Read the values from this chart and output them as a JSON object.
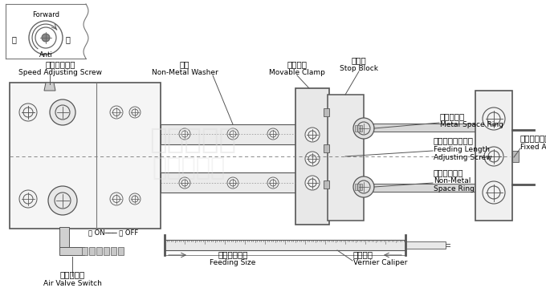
{
  "bg_color": "#ffffff",
  "dark_line": "#555555",
  "mid_line": "#777777",
  "text_color": "#000000",
  "fill_light": "#f2f2f2",
  "fill_mid": "#e0e0e0",
  "fill_dark": "#c8c8c8",
  "labels": {
    "forward": "Forward",
    "anti": "Anti",
    "speed_screw_cn": "速度調整螺絲",
    "speed_screw_en": "Speed Adjusting Screw",
    "washer_cn": "墊圈",
    "washer_en": "Non-Metal Washer",
    "clamp_cn": "移動夾板",
    "clamp_en": "Movable Clamp",
    "stop_cn": "擋止塊",
    "stop_en": "Stop Block",
    "metal_ring_cn": "金屬間隔環",
    "metal_ring_en": "Metal Space Ring",
    "feeding_screw_cn": "送料長度微調螺絲",
    "feeding_screw_en1": "Feeding Length",
    "feeding_screw_en2": "Adjusting Screw",
    "nonmetal_ring_cn": "非金屬間隔環",
    "nonmetal_ring_en1": "Non-Metal",
    "nonmetal_ring_en2": "Space Ring",
    "fixed_screw_cn": "固定微調螺絲",
    "fixed_screw_en": "Fixed Adjusting Screw",
    "on_off": "開 ON─── 關 OFF",
    "feeding_size_cn": "送料所需尺寸",
    "feeding_size_en": "Feeding Size",
    "vernier_cn": "游標卡尺",
    "vernier_en": "Vernier Caliper",
    "air_valve_cn": "空氣閥開關",
    "air_valve_en": "Air Valve Switch",
    "watermark1": "亞士達機械",
    "watermark2": "亞士達機械"
  },
  "figsize": [
    6.8,
    3.74
  ],
  "dpi": 100
}
